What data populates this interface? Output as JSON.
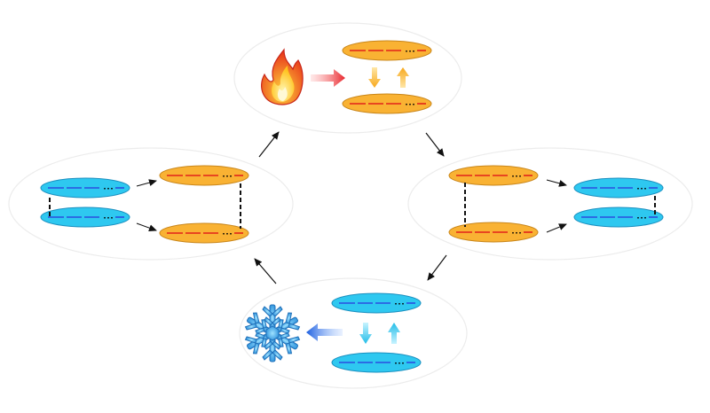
{
  "diagram": {
    "description_text": "",
    "stages": {
      "heating": {
        "icon": "fire-icon",
        "arrow_color": "#e8242a"
      },
      "cooling": {
        "icon": "snowflake-icon",
        "arrow_color": "#1d5fe0"
      },
      "left": {
        "pair": "cyan-to-orange"
      },
      "right": {
        "pair": "orange-to-cyan"
      }
    },
    "colors": {
      "orange_fill": "#f9b233",
      "orange_stroke": "#c9861a",
      "cyan_fill": "#2ec8f0",
      "cyan_stroke": "#1a8fbf",
      "red_segment": "#e2231a",
      "blue_segment": "#2a4de0",
      "dots": "#000000",
      "bubble_stroke": "#ececec",
      "cycle_arrow": "#111111"
    },
    "cycle_arrows": [
      "top-left",
      "top-right",
      "bottom-right",
      "bottom-left"
    ]
  }
}
